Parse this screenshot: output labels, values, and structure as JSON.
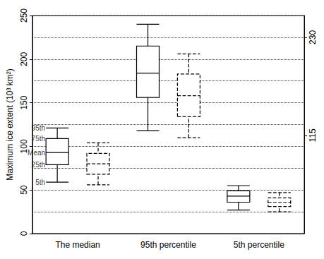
{
  "chart_data": {
    "type": "boxplot",
    "y_label": "Maximum ice extent (10³ km²)",
    "categories": [
      "The median",
      "95th percentile",
      "5th percentile"
    ],
    "series": [
      {
        "color": "#000000",
        "line_style": "solid",
        "values": [
          [
            59,
            79,
            93,
            109,
            121
          ],
          [
            118,
            156,
            184,
            215,
            240
          ],
          [
            27,
            36,
            43,
            49,
            55
          ]
        ]
      },
      {
        "color": "#000000",
        "line_style": "dashed",
        "values": [
          [
            56,
            68,
            80,
            92,
            104
          ],
          [
            110,
            134,
            158,
            183,
            206
          ],
          [
            25,
            31,
            36,
            41,
            47
          ]
        ]
      }
    ],
    "annotations": [
      {
        "text": "95th",
        "y": 121
      },
      {
        "text": "75th",
        "y": 109
      },
      {
        "text": "Mean",
        "y": 93
      },
      {
        "text": "25th",
        "y": 79
      },
      {
        "text": "5th",
        "y": 59
      }
    ],
    "ylim": [
      0,
      250
    ],
    "yticks": [
      0,
      50,
      100,
      150,
      200,
      250
    ],
    "y2lim": [
      0,
      255.56
    ],
    "y2ticks": [
      115,
      230
    ],
    "grid": true
  }
}
